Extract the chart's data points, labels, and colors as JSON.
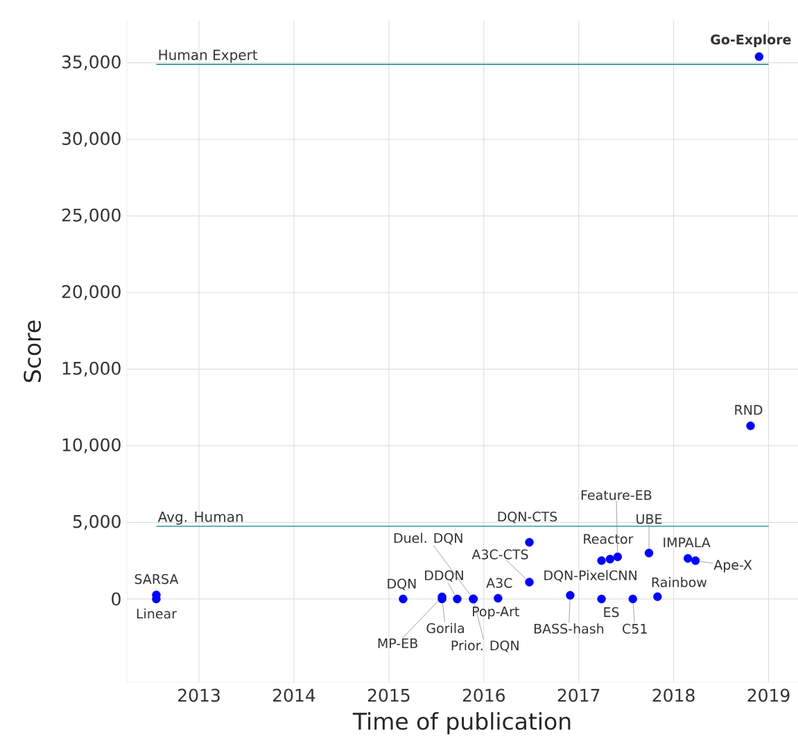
{
  "chart_data": {
    "type": "scatter",
    "xlabel": "Time of publication",
    "ylabel": "Score",
    "xlim": [
      2012.24,
      2019.31
    ],
    "ylim": [
      -5430,
      37740
    ],
    "xticks": [
      2013,
      2014,
      2015,
      2016,
      2017,
      2018,
      2019
    ],
    "yticks": [
      {
        "value": 0,
        "label": "0"
      },
      {
        "value": 5000,
        "label": "5,000"
      },
      {
        "value": 10000,
        "label": "10,000"
      },
      {
        "value": 15000,
        "label": "15,000"
      },
      {
        "value": 20000,
        "label": "20,000"
      },
      {
        "value": 25000,
        "label": "25,000"
      },
      {
        "value": 30000,
        "label": "30,000"
      },
      {
        "value": 35000,
        "label": "35,000"
      }
    ],
    "grid": true,
    "series": [
      {
        "marker": "circle",
        "color": "#0000ff",
        "x": [
          2012.55,
          2012.55,
          2015.15,
          2015.56,
          2015.56,
          2015.72,
          2015.89,
          2015.89,
          2015.89,
          2016.15,
          2016.48,
          2016.48,
          2017.24,
          2016.91,
          2017.24,
          2017.33,
          2017.41,
          2017.57,
          2017.74,
          2017.83,
          2018.15,
          2018.23,
          2018.81,
          2018.9
        ],
        "values": [
          260,
          0,
          0,
          140,
          0,
          0,
          0,
          0,
          0,
          50,
          1100,
          3700,
          2500,
          240,
          0,
          2600,
          2750,
          0,
          3000,
          150,
          2650,
          2500,
          11300,
          35400
        ]
      },
      {
        "type": "line",
        "marker": "none",
        "name": "Human Expert",
        "color": "#008b8b",
        "x": [
          2012.55,
          2019.0
        ],
        "values": [
          34900,
          34900
        ]
      },
      {
        "type": "line",
        "marker": "none",
        "name": "Avg. Human",
        "color": "#008b8b",
        "x": [
          2012.55,
          2019.0
        ],
        "values": [
          4750,
          4750
        ]
      }
    ],
    "annotations": [
      {
        "text": "SARSA",
        "x": 2012.55,
        "y": 260
      },
      {
        "text": "Linear",
        "x": 2012.55,
        "y": 0
      },
      {
        "text": "DQN",
        "x": 2015.15,
        "y": 0
      },
      {
        "text": "MP-EB",
        "x": 2015.56,
        "y": 140
      },
      {
        "text": "Gorila",
        "x": 2015.56,
        "y": 0
      },
      {
        "text": "DDQN",
        "x": 2015.72,
        "y": 0
      },
      {
        "text": "Duel. DQN",
        "x": 2015.89,
        "y": 0
      },
      {
        "text": "Prior. DQN",
        "x": 2015.89,
        "y": 0
      },
      {
        "text": "Pop-Art",
        "x": 2015.89,
        "y": 0
      },
      {
        "text": "A3C",
        "x": 2016.15,
        "y": 50
      },
      {
        "text": "A3C-CTS",
        "x": 2016.48,
        "y": 1100
      },
      {
        "text": "DQN-CTS",
        "x": 2016.48,
        "y": 3700
      },
      {
        "text": "DQN-PixelCNN",
        "x": 2017.24,
        "y": 2500
      },
      {
        "text": "BASS-hash",
        "x": 2016.91,
        "y": 240
      },
      {
        "text": "ES",
        "x": 2017.24,
        "y": 0
      },
      {
        "text": "Reactor",
        "x": 2017.33,
        "y": 2600
      },
      {
        "text": "Feature-EB",
        "x": 2017.41,
        "y": 2750
      },
      {
        "text": "C51",
        "x": 2017.57,
        "y": 0
      },
      {
        "text": "UBE",
        "x": 2017.74,
        "y": 3000
      },
      {
        "text": "Rainbow",
        "x": 2017.83,
        "y": 150
      },
      {
        "text": "IMPALA",
        "x": 2018.15,
        "y": 2650
      },
      {
        "text": "Ape-X",
        "x": 2018.23,
        "y": 2500
      },
      {
        "text": "RND",
        "x": 2018.81,
        "y": 11300
      },
      {
        "text": "**Go-Explore**",
        "x": 2018.9,
        "y": 35400
      }
    ]
  }
}
